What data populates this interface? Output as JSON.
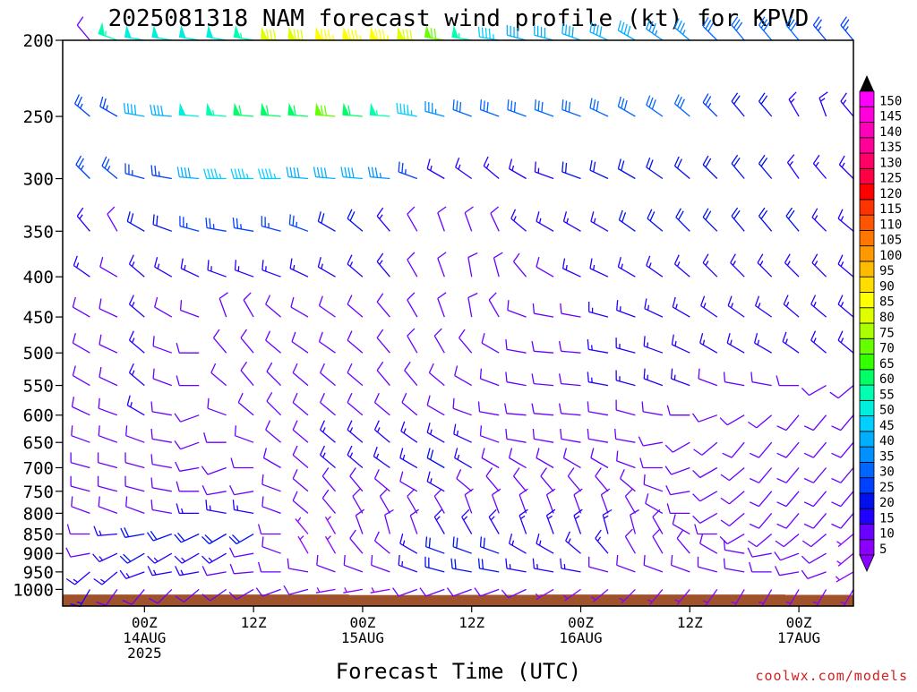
{
  "page": {
    "title": "2025081318 NAM forecast wind profile (kt) for KPVD",
    "xlabel": "Forecast Time (UTC)",
    "credit": "coolwx.com/models"
  },
  "chart_data": {
    "type": "wind-barb",
    "title": "2025081318 NAM forecast wind profile (kt) for KPVD",
    "xlabel": "Forecast Time (UTC)",
    "ylabel": "",
    "units": "kt",
    "y_scale": "log",
    "y_axis_inverted": true,
    "ylim": [
      1050,
      200
    ],
    "xlim": [
      -3,
      84
    ],
    "y_ticks": [
      200,
      250,
      300,
      350,
      400,
      450,
      500,
      550,
      600,
      650,
      700,
      750,
      800,
      850,
      900,
      950,
      1000
    ],
    "x_ticks": [
      {
        "hour": 6,
        "lines": [
          "00Z",
          "14AUG",
          "2025"
        ]
      },
      {
        "hour": 18,
        "lines": [
          "12Z"
        ]
      },
      {
        "hour": 30,
        "lines": [
          "00Z",
          "15AUG"
        ]
      },
      {
        "hour": 42,
        "lines": [
          "12Z"
        ]
      },
      {
        "hour": 54,
        "lines": [
          "00Z",
          "16AUG"
        ]
      },
      {
        "hour": 66,
        "lines": [
          "12Z"
        ]
      },
      {
        "hour": 78,
        "lines": [
          "00Z",
          "17AUG"
        ]
      }
    ],
    "forecast_hours": [
      0,
      3,
      6,
      9,
      12,
      15,
      18,
      21,
      24,
      27,
      30,
      33,
      36,
      39,
      42,
      45,
      48,
      51,
      54,
      57,
      60,
      63,
      66,
      69,
      72,
      75,
      78,
      81,
      84
    ],
    "levels": [
      200,
      250,
      300,
      350,
      400,
      450,
      500,
      550,
      600,
      650,
      700,
      750,
      800,
      850,
      900,
      950,
      1000
    ],
    "speed_kt": {
      "200": [
        10,
        55,
        50,
        50,
        50,
        50,
        55,
        80,
        80,
        85,
        85,
        85,
        80,
        70,
        55,
        45,
        40,
        40,
        40,
        40,
        40,
        35,
        35,
        30,
        30,
        30,
        30,
        25,
        25
      ],
      "250": [
        25,
        25,
        40,
        40,
        50,
        55,
        60,
        60,
        60,
        70,
        60,
        55,
        45,
        35,
        30,
        30,
        30,
        30,
        30,
        30,
        30,
        30,
        30,
        25,
        20,
        20,
        15,
        15,
        15
      ],
      "300": [
        25,
        25,
        25,
        25,
        40,
        45,
        45,
        45,
        40,
        40,
        40,
        35,
        25,
        15,
        15,
        15,
        15,
        15,
        20,
        20,
        20,
        20,
        20,
        20,
        20,
        20,
        15,
        15,
        15
      ],
      "350": [
        15,
        10,
        20,
        20,
        25,
        25,
        25,
        25,
        25,
        20,
        20,
        15,
        10,
        10,
        10,
        10,
        15,
        15,
        15,
        15,
        20,
        20,
        20,
        20,
        20,
        20,
        20,
        15,
        15
      ],
      "400": [
        15,
        10,
        15,
        15,
        15,
        15,
        15,
        15,
        15,
        15,
        15,
        15,
        10,
        10,
        10,
        10,
        10,
        10,
        15,
        15,
        15,
        15,
        15,
        15,
        15,
        15,
        15,
        15,
        15
      ],
      "450": [
        10,
        10,
        15,
        10,
        10,
        10,
        10,
        10,
        10,
        10,
        10,
        10,
        10,
        10,
        10,
        10,
        10,
        10,
        10,
        15,
        15,
        15,
        15,
        15,
        15,
        15,
        15,
        15,
        15
      ],
      "500": [
        10,
        10,
        15,
        10,
        10,
        10,
        10,
        10,
        10,
        10,
        10,
        10,
        10,
        10,
        10,
        10,
        10,
        10,
        10,
        15,
        15,
        15,
        15,
        15,
        15,
        15,
        15,
        15,
        15
      ],
      "550": [
        10,
        10,
        15,
        10,
        10,
        10,
        10,
        10,
        10,
        10,
        10,
        10,
        10,
        10,
        10,
        10,
        10,
        10,
        10,
        15,
        15,
        15,
        15,
        10,
        10,
        10,
        10,
        10,
        10
      ],
      "600": [
        10,
        10,
        15,
        10,
        10,
        10,
        10,
        10,
        10,
        10,
        10,
        10,
        10,
        10,
        10,
        10,
        10,
        10,
        10,
        10,
        10,
        10,
        10,
        10,
        10,
        10,
        10,
        10,
        10
      ],
      "650": [
        10,
        10,
        10,
        10,
        10,
        10,
        10,
        10,
        10,
        15,
        15,
        15,
        15,
        15,
        15,
        10,
        10,
        10,
        10,
        10,
        10,
        10,
        10,
        10,
        10,
        10,
        10,
        10,
        10
      ],
      "700": [
        10,
        10,
        10,
        10,
        10,
        10,
        10,
        10,
        10,
        15,
        15,
        15,
        15,
        20,
        15,
        10,
        10,
        10,
        10,
        10,
        10,
        10,
        10,
        10,
        10,
        10,
        10,
        10,
        10
      ],
      "750": [
        10,
        10,
        10,
        10,
        10,
        10,
        10,
        10,
        10,
        10,
        10,
        10,
        10,
        15,
        10,
        10,
        10,
        10,
        10,
        10,
        10,
        10,
        10,
        10,
        10,
        10,
        10,
        10,
        10
      ],
      "800": [
        10,
        10,
        10,
        10,
        15,
        15,
        15,
        10,
        10,
        10,
        10,
        10,
        10,
        10,
        10,
        10,
        10,
        10,
        10,
        10,
        10,
        10,
        10,
        10,
        10,
        10,
        10,
        10,
        10
      ],
      "850": [
        10,
        15,
        20,
        20,
        20,
        20,
        20,
        10,
        5,
        5,
        10,
        10,
        10,
        15,
        15,
        15,
        15,
        15,
        15,
        15,
        10,
        10,
        10,
        10,
        10,
        10,
        10,
        10,
        5
      ],
      "900": [
        10,
        15,
        20,
        15,
        15,
        15,
        10,
        10,
        5,
        5,
        10,
        10,
        15,
        20,
        20,
        20,
        15,
        15,
        15,
        15,
        10,
        10,
        10,
        10,
        10,
        10,
        10,
        10,
        5
      ],
      "950": [
        15,
        15,
        15,
        15,
        15,
        10,
        10,
        10,
        10,
        10,
        10,
        10,
        15,
        20,
        20,
        20,
        15,
        15,
        15,
        10,
        10,
        10,
        10,
        10,
        10,
        10,
        10,
        10,
        5
      ],
      "1000": [
        15,
        10,
        10,
        10,
        10,
        10,
        10,
        10,
        10,
        5,
        5,
        5,
        10,
        10,
        10,
        10,
        10,
        5,
        5,
        5,
        5,
        5,
        5,
        5,
        5,
        5,
        5,
        5,
        5
      ]
    },
    "direction_deg": {
      "200": [
        320,
        290,
        280,
        280,
        280,
        280,
        280,
        275,
        275,
        275,
        275,
        275,
        275,
        280,
        280,
        280,
        285,
        285,
        290,
        295,
        300,
        305,
        310,
        315,
        320,
        320,
        320,
        320,
        320
      ],
      "250": [
        310,
        300,
        280,
        275,
        275,
        275,
        275,
        275,
        275,
        275,
        275,
        275,
        280,
        285,
        290,
        290,
        290,
        290,
        290,
        295,
        300,
        305,
        310,
        315,
        320,
        320,
        330,
        340,
        320
      ],
      "300": [
        315,
        310,
        285,
        280,
        275,
        270,
        270,
        270,
        275,
        275,
        275,
        275,
        290,
        300,
        305,
        310,
        300,
        290,
        290,
        295,
        300,
        305,
        310,
        315,
        320,
        320,
        325,
        320,
        315
      ],
      "350": [
        320,
        330,
        300,
        290,
        285,
        280,
        280,
        285,
        290,
        300,
        310,
        320,
        330,
        340,
        340,
        335,
        310,
        300,
        300,
        300,
        305,
        310,
        315,
        315,
        320,
        320,
        320,
        315,
        310
      ],
      "400": [
        305,
        300,
        310,
        300,
        295,
        290,
        290,
        290,
        295,
        300,
        310,
        320,
        330,
        340,
        350,
        345,
        320,
        300,
        295,
        295,
        300,
        305,
        310,
        315,
        315,
        315,
        315,
        315,
        310
      ],
      "450": [
        300,
        295,
        310,
        300,
        290,
        340,
        330,
        310,
        300,
        305,
        310,
        320,
        330,
        340,
        350,
        330,
        290,
        280,
        280,
        285,
        290,
        295,
        300,
        305,
        305,
        305,
        310,
        310,
        310
      ],
      "500": [
        300,
        295,
        310,
        290,
        270,
        320,
        320,
        310,
        305,
        305,
        310,
        320,
        330,
        330,
        320,
        300,
        280,
        275,
        275,
        280,
        285,
        290,
        295,
        300,
        300,
        300,
        305,
        310,
        310
      ],
      "550": [
        300,
        295,
        310,
        290,
        270,
        310,
        320,
        315,
        310,
        310,
        310,
        320,
        320,
        310,
        300,
        290,
        280,
        275,
        275,
        280,
        285,
        290,
        290,
        290,
        280,
        280,
        270,
        240,
        230
      ],
      "600": [
        295,
        290,
        300,
        280,
        250,
        290,
        310,
        315,
        310,
        310,
        310,
        310,
        310,
        300,
        290,
        280,
        275,
        275,
        275,
        280,
        285,
        280,
        270,
        250,
        240,
        230,
        220,
        220,
        220
      ],
      "650": [
        290,
        290,
        290,
        280,
        250,
        270,
        290,
        310,
        310,
        310,
        310,
        310,
        305,
        300,
        295,
        290,
        280,
        280,
        280,
        280,
        280,
        260,
        240,
        230,
        220,
        220,
        220,
        220,
        220
      ],
      "700": [
        285,
        285,
        285,
        280,
        260,
        250,
        270,
        300,
        310,
        310,
        310,
        305,
        300,
        300,
        300,
        300,
        300,
        300,
        300,
        300,
        290,
        270,
        250,
        240,
        230,
        220,
        220,
        220,
        220
      ],
      "750": [
        285,
        285,
        285,
        280,
        270,
        260,
        260,
        290,
        310,
        320,
        320,
        310,
        300,
        300,
        310,
        320,
        320,
        320,
        320,
        320,
        310,
        290,
        260,
        240,
        230,
        220,
        220,
        220,
        220
      ],
      "800": [
        290,
        290,
        290,
        280,
        270,
        280,
        280,
        290,
        310,
        320,
        330,
        330,
        330,
        330,
        340,
        340,
        340,
        340,
        340,
        340,
        330,
        300,
        270,
        240,
        230,
        220,
        220,
        220,
        220
      ],
      "850": [
        270,
        265,
        260,
        250,
        245,
        240,
        240,
        270,
        320,
        330,
        340,
        345,
        340,
        330,
        330,
        330,
        340,
        340,
        340,
        345,
        345,
        330,
        300,
        270,
        240,
        230,
        230,
        230,
        230
      ],
      "900": [
        260,
        245,
        240,
        240,
        240,
        240,
        260,
        290,
        330,
        330,
        320,
        310,
        300,
        290,
        290,
        290,
        300,
        300,
        310,
        320,
        330,
        330,
        320,
        300,
        280,
        260,
        250,
        240,
        230
      ],
      "950": [
        230,
        230,
        250,
        260,
        260,
        260,
        265,
        270,
        280,
        290,
        290,
        290,
        290,
        285,
        280,
        280,
        280,
        280,
        280,
        285,
        290,
        290,
        290,
        285,
        280,
        270,
        260,
        250,
        240
      ],
      "1000": [
        210,
        215,
        220,
        225,
        230,
        235,
        240,
        250,
        255,
        260,
        260,
        260,
        250,
        250,
        250,
        250,
        245,
        240,
        235,
        230,
        225,
        220,
        220,
        215,
        210,
        210,
        210,
        210,
        210
      ]
    },
    "surface_pressure_hpa": [
      1015,
      1015,
      1015,
      1015,
      1015,
      1015,
      1015,
      1015,
      1015,
      1015,
      1017,
      1017,
      1017,
      1017,
      1016,
      1016,
      1016,
      1015,
      1015,
      1015,
      1015,
      1015,
      1015,
      1015,
      1015,
      1015,
      1016,
      1016,
      1016
    ],
    "colorbar": {
      "values": [
        5,
        10,
        15,
        20,
        25,
        30,
        35,
        40,
        45,
        50,
        55,
        60,
        65,
        70,
        75,
        80,
        85,
        90,
        95,
        100,
        105,
        110,
        115,
        120,
        125,
        130,
        135,
        140,
        145,
        150
      ],
      "colors": [
        "#8b00ff",
        "#6a00ff",
        "#2200ff",
        "#0011ee",
        "#0040ff",
        "#0066ff",
        "#0090ff",
        "#00b0ff",
        "#00d0ff",
        "#00eedd",
        "#00ffb0",
        "#00ff66",
        "#33ff00",
        "#66ff00",
        "#aaff00",
        "#dfff00",
        "#ffff00",
        "#ffdd00",
        "#ffbb00",
        "#ff9900",
        "#ff7700",
        "#ff5500",
        "#ff3300",
        "#ff0000",
        "#ff0044",
        "#ff0066",
        "#ff0099",
        "#ff00bb",
        "#ff00dd",
        "#ff00ff"
      ]
    },
    "ground_color": "#a0522d",
    "legend_placement": "right",
    "grid": false
  }
}
